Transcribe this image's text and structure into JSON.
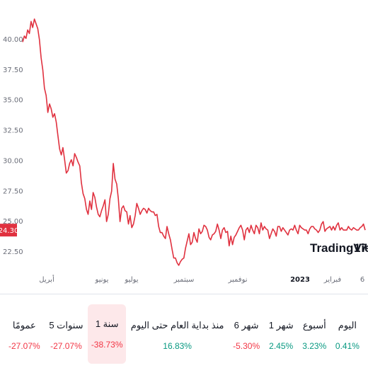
{
  "chart_data": {
    "type": "line",
    "series": [
      {
        "values": [
          39.8,
          40.3,
          40.1,
          40.8,
          40.5,
          41.5,
          41.0,
          41.7,
          41.3,
          40.9,
          40.0,
          38.5,
          37.5,
          36.0,
          35.4,
          34.0,
          34.7,
          34.3,
          33.6,
          33.9,
          33.2,
          32.1,
          31.0,
          30.5,
          31.1,
          30.1,
          29.0,
          29.2,
          29.8,
          30.1,
          29.6,
          30.6,
          30.3,
          29.9,
          29.6,
          28.2,
          27.3,
          26.9,
          26.0,
          25.6,
          26.7,
          26.0,
          27.4,
          27.0,
          26.2,
          25.6,
          25.4,
          25.9,
          26.3,
          26.8,
          25.0,
          25.6,
          26.9,
          27.5,
          29.8,
          28.5,
          28.1,
          26.9,
          25.0,
          26.1,
          26.3,
          25.9,
          25.8,
          24.8,
          25.5,
          24.5,
          24.8,
          25.5,
          26.5,
          26.1,
          25.6,
          25.9,
          26.1,
          26.0,
          25.7,
          26.1,
          25.9,
          25.8,
          25.8,
          25.5,
          25.6,
          24.6,
          24.1,
          24.1,
          23.8,
          23.6,
          24.6,
          24.0,
          23.5,
          22.7,
          22.0,
          22.0,
          21.6,
          21.4,
          21.7,
          21.9,
          22.0,
          22.8,
          23.4,
          24.0,
          23.1,
          23.3,
          24.1,
          23.6,
          23.3,
          24.4,
          24.0,
          24.2,
          24.7,
          24.6,
          24.3,
          23.7,
          23.5,
          23.9,
          24.0,
          24.2,
          24.8,
          24.3,
          23.6,
          24.3,
          24.5,
          24.1,
          24.2,
          23.0,
          23.8,
          23.1,
          23.7,
          23.9,
          24.2,
          24.5,
          24.7,
          24.3,
          23.5,
          24.3,
          24.5,
          24.1,
          24.7,
          24.3,
          24.0,
          24.7,
          24.5,
          24.0,
          24.9,
          24.3,
          24.6,
          24.4,
          24.3,
          23.6,
          24.0,
          24.4,
          24.2,
          23.8,
          24.6,
          24.6,
          24.2,
          24.5,
          24.3,
          24.1,
          23.9,
          24.3,
          24.4,
          24.3,
          24.7,
          24.3,
          24.0,
          24.7,
          24.5,
          24.4,
          24.3,
          24.3,
          24.0,
          24.4,
          24.6,
          24.6,
          24.4,
          24.3,
          24.1,
          24.3,
          24.8,
          25.0,
          24.2,
          24.4,
          24.5,
          24.6,
          24.3,
          24.6,
          24.3,
          24.7,
          24.9,
          24.3,
          24.5,
          24.3,
          24.3,
          24.3,
          24.6,
          24.4,
          24.3,
          24.5,
          24.4,
          24.3,
          24.3,
          24.5,
          24.6,
          24.8,
          24.3
        ]
      }
    ],
    "yticks": [
      "40.00",
      "37.50",
      "35.00",
      "32.50",
      "30.00",
      "27.50",
      "25.00",
      "22.50"
    ],
    "ytick_values": [
      40,
      37.5,
      35,
      32.5,
      30,
      27.5,
      25,
      22.5
    ],
    "xticks": [
      "أبريل",
      "يونيو",
      "يوليو",
      "سبتمبر",
      "نوفمبر",
      "2023",
      "فبراير",
      "6"
    ],
    "last_price": "24.30",
    "line_color": "#e0313f",
    "ylim": [
      21.5,
      42.5
    ],
    "grid": false
  },
  "logo": {
    "text": "TradingView",
    "mark": "17"
  },
  "periods": [
    {
      "label": "اليوم",
      "value": "0.41%",
      "tone": "pos",
      "active": false
    },
    {
      "label": "أسبوع",
      "value": "3.23%",
      "tone": "pos",
      "active": false
    },
    {
      "label": "1 شهر",
      "value": "2.45%",
      "tone": "pos",
      "active": false
    },
    {
      "label": "6 شهر",
      "value": "-5.30%",
      "tone": "neg",
      "active": false
    },
    {
      "label": "منذ بداية العام حتى اليوم",
      "value": "16.83%",
      "tone": "pos",
      "active": false
    },
    {
      "label": "1 سنة",
      "value": "-38.73%",
      "tone": "neg",
      "active": true
    },
    {
      "label": "5 سنوات",
      "value": "-27.07%",
      "tone": "neg",
      "active": false
    },
    {
      "label": "عمومًا",
      "value": "-27.07%",
      "tone": "neg",
      "active": false
    }
  ],
  "colors": {
    "positive": "#089981",
    "negative": "#f23645",
    "active_bg": "#fde8ea"
  }
}
